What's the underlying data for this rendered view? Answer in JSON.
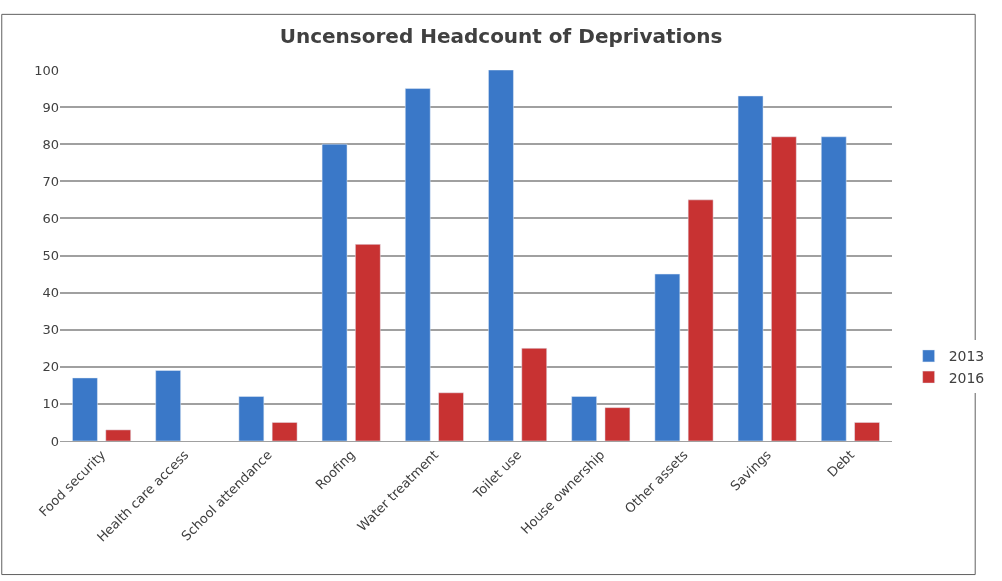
{
  "chart_data": {
    "type": "bar",
    "title": "Uncensored Headcount of Deprivations",
    "categories": [
      "Food security",
      "Health care access",
      "School attendance",
      "Roofing",
      "Water treatment",
      "Toilet use",
      "House ownership",
      "Other assets",
      "Savings",
      "Debt"
    ],
    "series": [
      {
        "name": "2013",
        "color": "#3a78c8",
        "values": [
          17,
          19,
          12,
          80,
          95,
          100,
          12,
          45,
          93,
          82
        ]
      },
      {
        "name": "2016",
        "color": "#c83232",
        "values": [
          3,
          null,
          5,
          53,
          13,
          25,
          9,
          65,
          82,
          5
        ]
      }
    ],
    "ylim": [
      0,
      100
    ],
    "yticks": [
      0,
      10,
      20,
      30,
      40,
      50,
      60,
      70,
      80,
      90,
      100
    ],
    "grid": "y",
    "legend": "right"
  }
}
